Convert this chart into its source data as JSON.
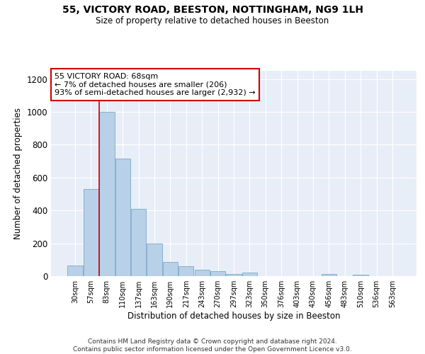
{
  "title1": "55, VICTORY ROAD, BEESTON, NOTTINGHAM, NG9 1LH",
  "title2": "Size of property relative to detached houses in Beeston",
  "xlabel": "Distribution of detached houses by size in Beeston",
  "ylabel": "Number of detached properties",
  "footer1": "Contains HM Land Registry data © Crown copyright and database right 2024.",
  "footer2": "Contains public sector information licensed under the Open Government Licence v3.0.",
  "categories": [
    "30sqm",
    "57sqm",
    "83sqm",
    "110sqm",
    "137sqm",
    "163sqm",
    "190sqm",
    "217sqm",
    "243sqm",
    "270sqm",
    "297sqm",
    "323sqm",
    "350sqm",
    "376sqm",
    "403sqm",
    "430sqm",
    "456sqm",
    "483sqm",
    "510sqm",
    "536sqm",
    "563sqm"
  ],
  "values": [
    65,
    530,
    1000,
    715,
    410,
    198,
    85,
    60,
    40,
    32,
    15,
    20,
    0,
    0,
    0,
    0,
    15,
    0,
    10,
    0,
    0
  ],
  "bar_color": "#b8d0e8",
  "bar_edge_color": "#7aaacb",
  "vline_x": 1.5,
  "vline_color": "#cc0000",
  "annotation_text": "55 VICTORY ROAD: 68sqm\n← 7% of detached houses are smaller (206)\n93% of semi-detached houses are larger (2,932) →",
  "annotation_box_color": "#ffffff",
  "annotation_box_edge": "#cc0000",
  "ylim": [
    0,
    1250
  ],
  "yticks": [
    0,
    200,
    400,
    600,
    800,
    1000,
    1200
  ],
  "bg_color": "#e8eef8"
}
